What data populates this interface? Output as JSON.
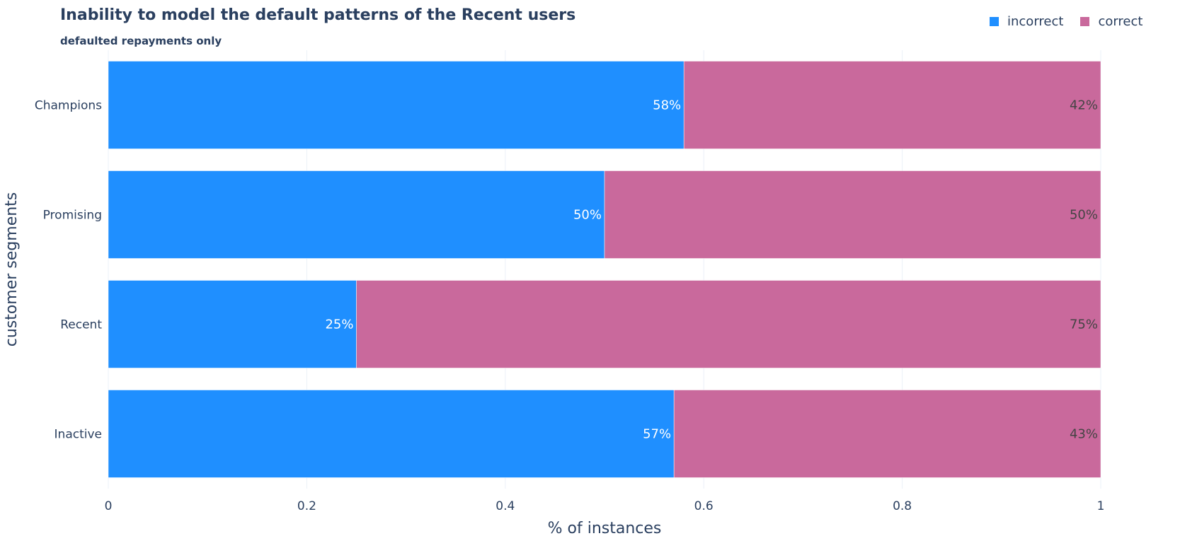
{
  "chart_data": {
    "type": "bar",
    "orientation": "horizontal",
    "stacked": true,
    "title": "Inability to model the default patterns of the Recent users",
    "subtitle": "defaulted repayments only",
    "xlabel": "% of instances",
    "ylabel": "customer segments",
    "xlim": [
      0,
      1
    ],
    "xticks": [
      0,
      0.2,
      0.4,
      0.6,
      0.8,
      1
    ],
    "xtick_labels": [
      "0",
      "0.2",
      "0.4",
      "0.6",
      "0.8",
      "1"
    ],
    "categories": [
      "Champions",
      "Promising",
      "Recent",
      "Inactive"
    ],
    "series": [
      {
        "name": "incorrect",
        "color": "#1f8fff",
        "values": [
          0.58,
          0.5,
          0.25,
          0.57
        ],
        "labels": [
          "58%",
          "50%",
          "25%",
          "57%"
        ],
        "label_color": "#ffffff"
      },
      {
        "name": "correct",
        "color": "#c9699c",
        "values": [
          0.42,
          0.5,
          0.75,
          0.43
        ],
        "labels": [
          "42%",
          "50%",
          "75%",
          "43%"
        ],
        "label_color": "#444444"
      }
    ],
    "grid": true,
    "legend_position": "top-right"
  }
}
